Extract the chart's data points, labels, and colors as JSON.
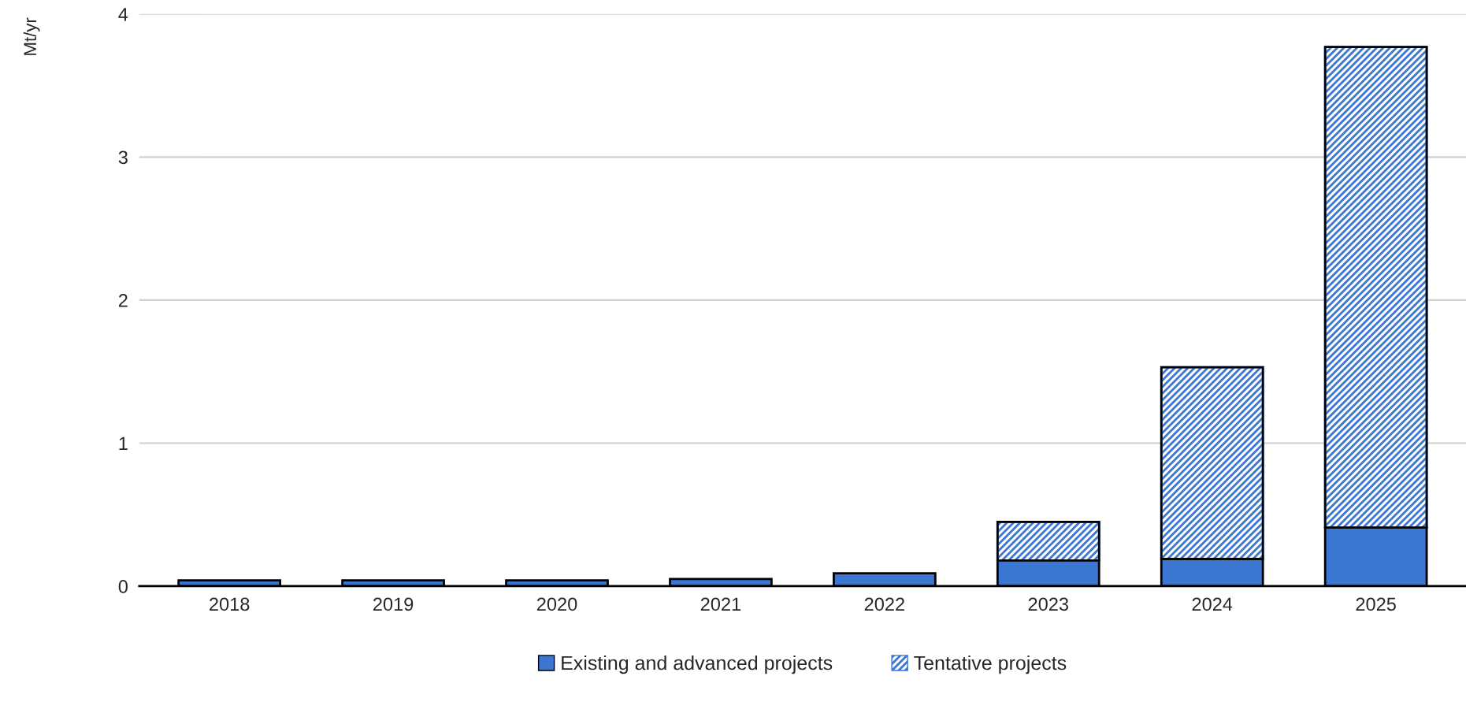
{
  "chart_data": {
    "type": "bar",
    "ylabel": "Mt/yr",
    "stacked": true,
    "categories": [
      "2018",
      "2019",
      "2020",
      "2021",
      "2022",
      "2023",
      "2024",
      "2025"
    ],
    "series": [
      {
        "name": "Existing and advanced projects",
        "color": "#3b76d3",
        "values": [
          0.04,
          0.04,
          0.04,
          0.05,
          0.09,
          0.18,
          0.19,
          0.41
        ]
      },
      {
        "name": "Tentative projects",
        "color": "#3b76d3",
        "values": [
          null,
          null,
          null,
          null,
          null,
          0.27,
          1.34,
          3.36
        ]
      }
    ],
    "ylim": [
      0,
      4
    ],
    "yticks": [
      0,
      1,
      2,
      3,
      4
    ],
    "grid": "y",
    "legend": "bottom"
  }
}
